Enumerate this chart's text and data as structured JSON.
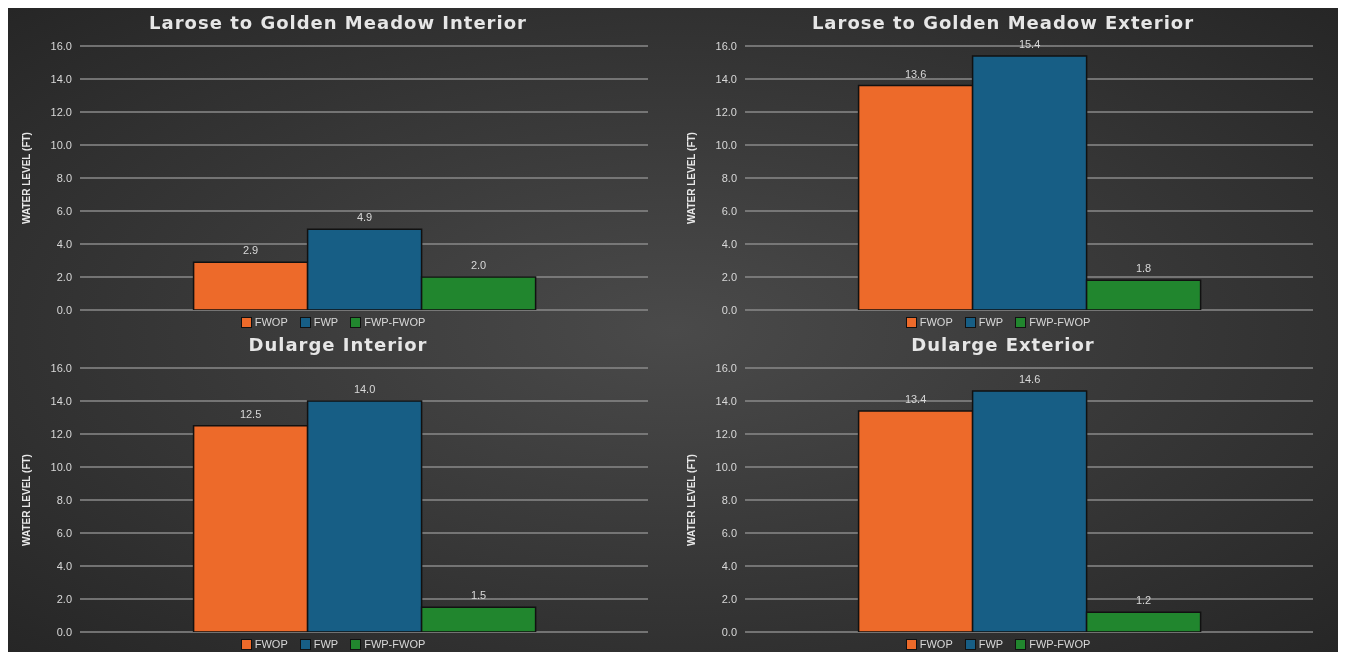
{
  "chart_data": [
    {
      "type": "bar",
      "title": "Larose to Golden Meadow Interior",
      "ylabel": "WATER LEVEL (FT)",
      "categories": [
        null
      ],
      "ylim": [
        0,
        16
      ],
      "yticks": [
        {
          "value": 0,
          "label": "0.0"
        },
        {
          "value": 2,
          "label": "2.0"
        },
        {
          "value": 4,
          "label": "4.0"
        },
        {
          "value": 6,
          "label": "6.0"
        },
        {
          "value": 8,
          "label": "8.0"
        },
        {
          "value": 10,
          "label": "10.0"
        },
        {
          "value": 12,
          "label": "12.0"
        },
        {
          "value": 14,
          "label": "14.0"
        },
        {
          "value": 16,
          "label": "16.0"
        }
      ],
      "grid": "y",
      "legend": "bottom",
      "series": [
        {
          "name": "FWOP",
          "color": "#ed6a2a",
          "values": [
            2.9
          ],
          "value_labels": [
            "2.9"
          ]
        },
        {
          "name": "FWP",
          "color": "#175e85",
          "values": [
            4.9
          ],
          "value_labels": [
            "4.9"
          ]
        },
        {
          "name": "FWP-FWOP",
          "color": "#21862e",
          "values": [
            2.0
          ],
          "value_labels": [
            "2.0"
          ]
        }
      ]
    },
    {
      "type": "bar",
      "title": "Larose to Golden Meadow Exterior",
      "ylabel": "WATER LEVEL (FT)",
      "categories": [
        null
      ],
      "ylim": [
        0,
        16
      ],
      "yticks": [
        {
          "value": 0,
          "label": "0.0"
        },
        {
          "value": 2,
          "label": "2.0"
        },
        {
          "value": 4,
          "label": "4.0"
        },
        {
          "value": 6,
          "label": "6.0"
        },
        {
          "value": 8,
          "label": "8.0"
        },
        {
          "value": 10,
          "label": "10.0"
        },
        {
          "value": 12,
          "label": "12.0"
        },
        {
          "value": 14,
          "label": "14.0"
        },
        {
          "value": 16,
          "label": "16.0"
        }
      ],
      "grid": "y",
      "legend": "bottom",
      "series": [
        {
          "name": "FWOP",
          "color": "#ed6a2a",
          "values": [
            13.6
          ],
          "value_labels": [
            "13.6"
          ]
        },
        {
          "name": "FWP",
          "color": "#175e85",
          "values": [
            15.4
          ],
          "value_labels": [
            "15.4"
          ]
        },
        {
          "name": "FWP-FWOP",
          "color": "#21862e",
          "values": [
            1.8
          ],
          "value_labels": [
            "1.8"
          ]
        }
      ]
    },
    {
      "type": "bar",
      "title": "Dularge Interior",
      "ylabel": "WATER LEVEL (FT)",
      "categories": [
        null
      ],
      "ylim": [
        0,
        16
      ],
      "yticks": [
        {
          "value": 0,
          "label": "0.0"
        },
        {
          "value": 2,
          "label": "2.0"
        },
        {
          "value": 4,
          "label": "4.0"
        },
        {
          "value": 6,
          "label": "6.0"
        },
        {
          "value": 8,
          "label": "8.0"
        },
        {
          "value": 10,
          "label": "10.0"
        },
        {
          "value": 12,
          "label": "12.0"
        },
        {
          "value": 14,
          "label": "14.0"
        },
        {
          "value": 16,
          "label": "16.0"
        }
      ],
      "grid": "y",
      "legend": "bottom",
      "series": [
        {
          "name": "FWOP",
          "color": "#ed6a2a",
          "values": [
            12.5
          ],
          "value_labels": [
            "12.5"
          ]
        },
        {
          "name": "FWP",
          "color": "#175e85",
          "values": [
            14.0
          ],
          "value_labels": [
            "14.0"
          ]
        },
        {
          "name": "FWP-FWOP",
          "color": "#21862e",
          "values": [
            1.5
          ],
          "value_labels": [
            "1.5"
          ]
        }
      ]
    },
    {
      "type": "bar",
      "title": "Dularge Exterior",
      "ylabel": "WATER LEVEL (FT)",
      "categories": [
        null
      ],
      "ylim": [
        0,
        16
      ],
      "yticks": [
        {
          "value": 0,
          "label": "0.0"
        },
        {
          "value": 2,
          "label": "2.0"
        },
        {
          "value": 4,
          "label": "4.0"
        },
        {
          "value": 6,
          "label": "6.0"
        },
        {
          "value": 8,
          "label": "8.0"
        },
        {
          "value": 10,
          "label": "10.0"
        },
        {
          "value": 12,
          "label": "12.0"
        },
        {
          "value": 14,
          "label": "14.0"
        },
        {
          "value": 16,
          "label": "16.0"
        }
      ],
      "grid": "y",
      "legend": "bottom",
      "series": [
        {
          "name": "FWOP",
          "color": "#ed6a2a",
          "values": [
            13.4
          ],
          "value_labels": [
            "13.4"
          ]
        },
        {
          "name": "FWP",
          "color": "#175e85",
          "values": [
            14.6
          ],
          "value_labels": [
            "14.6"
          ]
        },
        {
          "name": "FWP-FWOP",
          "color": "#21862e",
          "values": [
            1.2
          ],
          "value_labels": [
            "1.2"
          ]
        }
      ]
    }
  ]
}
